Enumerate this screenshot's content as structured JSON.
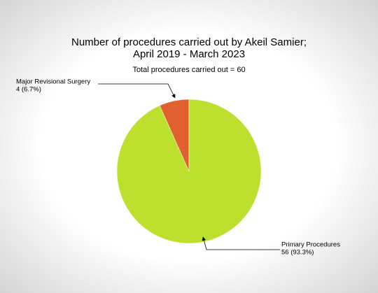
{
  "chart_data": {
    "type": "pie",
    "title": [
      "Number of procedures carried out by Akeil Samier;",
      "April 2019 - March 2023"
    ],
    "subtitle": "Total procedures carried out = 60",
    "categories": [
      "Major Revisional Surgery",
      "Primary Procedures"
    ],
    "values": [
      4,
      56
    ],
    "value_labels": [
      "4 (6.7%)",
      "56 (93.3%)"
    ],
    "colors": [
      "#e0612f",
      "#bde02e"
    ]
  }
}
